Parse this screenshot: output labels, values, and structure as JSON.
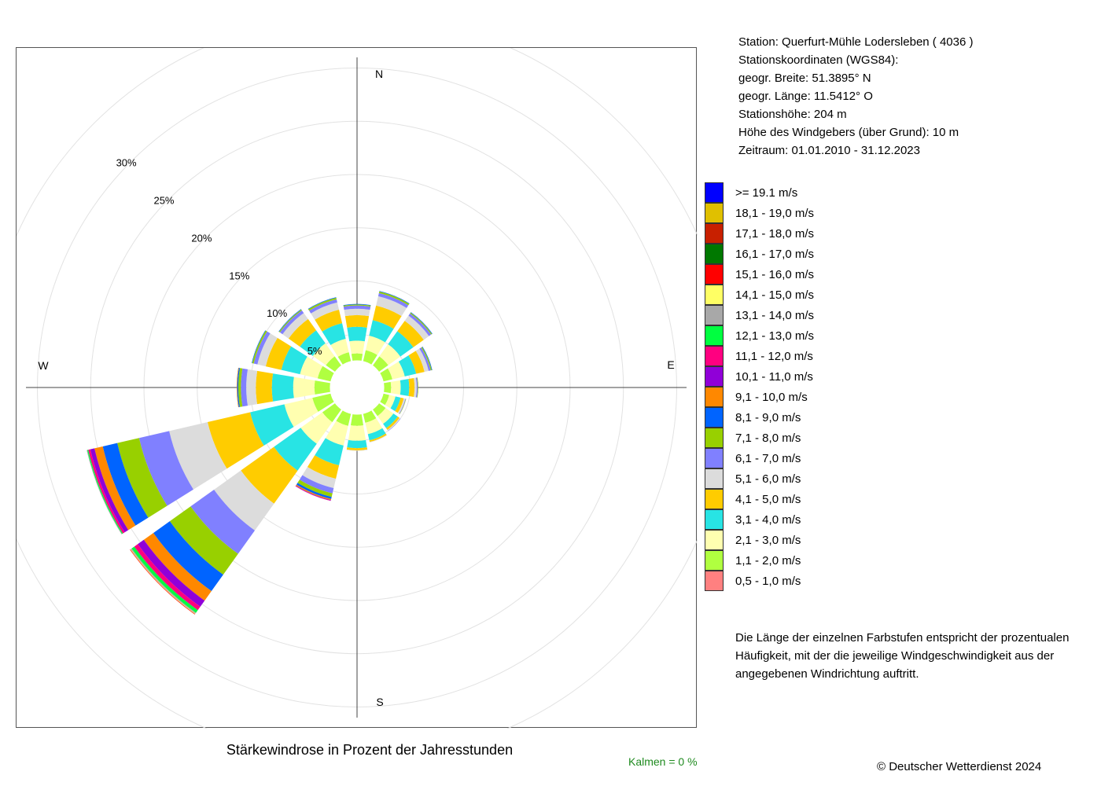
{
  "station": {
    "lines": [
      "Station:  Querfurt-Mühle Lodersleben  ( 4036 )",
      "Stationskoordinaten (WGS84):",
      "geogr. Breite: 51.3895° N",
      "geogr. Länge: 11.5412° O",
      "Stationshöhe: 204 m",
      "Höhe des Windgebers (über Grund): 10 m",
      "Zeitraum: 01.01.2010 - 31.12.2023"
    ]
  },
  "legend": [
    {
      "label": ">= 19.1 m/s",
      "color": "#0000ff"
    },
    {
      "label": "18,1 - 19,0 m/s",
      "color": "#e0c000"
    },
    {
      "label": "17,1 - 18,0 m/s",
      "color": "#c82000"
    },
    {
      "label": "16,1 - 17,0 m/s",
      "color": "#007800"
    },
    {
      "label": "15,1 - 16,0 m/s",
      "color": "#ff0000"
    },
    {
      "label": "14,1 - 15,0 m/s",
      "color": "#ffff64"
    },
    {
      "label": "13,1 - 14,0 m/s",
      "color": "#a8a8a8"
    },
    {
      "label": "12,1 - 13,0 m/s",
      "color": "#00ff40"
    },
    {
      "label": "11,1 - 12,0 m/s",
      "color": "#ff0080"
    },
    {
      "label": "10,1 - 11,0 m/s",
      "color": "#9000d8"
    },
    {
      "label": "9,1 - 10,0 m/s",
      "color": "#ff8800"
    },
    {
      "label": "8,1 - 9,0 m/s",
      "color": "#0064ff"
    },
    {
      "label": "7,1 - 8,0 m/s",
      "color": "#98d000"
    },
    {
      "label": "6,1 - 7,0 m/s",
      "color": "#8080ff"
    },
    {
      "label": "5,1 - 6,0 m/s",
      "color": "#dcdcdc"
    },
    {
      "label": "4,1 - 5,0 m/s",
      "color": "#ffcc00"
    },
    {
      "label": "3,1 - 4,0 m/s",
      "color": "#28e4e4"
    },
    {
      "label": "2,1 - 3,0 m/s",
      "color": "#ffffb0"
    },
    {
      "label": "1,1 - 2,0 m/s",
      "color": "#b0ff40"
    },
    {
      "label": "0,5 - 1,0 m/s",
      "color": "#ff8080"
    }
  ],
  "note": {
    "lines": [
      "Die Länge der einzelnen Farbstufen entspricht der prozentualen",
      "Häufigkeit, mit der die jeweilige Windgeschwindigkeit aus der",
      "angegebenen Windrichtung auftritt."
    ]
  },
  "title": "Stärkewindrose in Prozent der Jahresstunden",
  "copyright": "© Deutscher Wetterdienst  2024",
  "calm_label": "Kalmen  =  0 %",
  "chart_data": {
    "type": "polar-stacked-bar",
    "title": "Stärkewindrose in Prozent der Jahresstunden",
    "directions": [
      "N",
      "NNO",
      "NO",
      "ONO",
      "O",
      "OSO",
      "SO",
      "SSO",
      "S",
      "SSW",
      "SW",
      "WSW",
      "W",
      "WNW",
      "NW",
      "NNW"
    ],
    "direction_labels": {
      "N": "N",
      "E": "E",
      "S": "S",
      "W": "W"
    },
    "radial_ticks": [
      {
        "value": 5,
        "label": "5%"
      },
      {
        "value": 10,
        "label": "10%"
      },
      {
        "value": 15,
        "label": "15%"
      },
      {
        "value": 20,
        "label": "20%"
      },
      {
        "value": 25,
        "label": "25%"
      },
      {
        "value": 30,
        "label": "30%"
      }
    ],
    "rmax": 31,
    "calm_percent": 0,
    "bins_low_to_high": [
      "0,5 - 1,0 m/s",
      "1,1 - 2,0 m/s",
      "2,1 - 3,0 m/s",
      "3,1 - 4,0 m/s",
      "4,1 - 5,0 m/s",
      "5,1 - 6,0 m/s",
      "6,1 - 7,0 m/s",
      "7,1 - 8,0 m/s",
      "8,1 - 9,0 m/s",
      "9,1 - 10,0 m/s",
      "10,1 - 11,0 m/s",
      "11,1 - 12,0 m/s",
      "12,1 - 13,0 m/s",
      "13,1 - 14,0 m/s",
      "14,1 - 15,0 m/s",
      "15,1 - 16,0 m/s",
      "16,1 - 17,0 m/s",
      "17,1 - 18,0 m/s",
      "18,1 - 19,0 m/s",
      ">= 19.1 m/s"
    ],
    "values": {
      "N": [
        2.5,
        0.7,
        1.2,
        1.3,
        1.1,
        0.6,
        0.3,
        0.1,
        0.05,
        0,
        0,
        0,
        0,
        0,
        0,
        0,
        0,
        0,
        0,
        0
      ],
      "NNO": [
        2.5,
        1.1,
        1.4,
        1.5,
        1.4,
        0.9,
        0.3,
        0.15,
        0.05,
        0,
        0,
        0,
        0,
        0,
        0,
        0,
        0,
        0,
        0,
        0
      ],
      "NO": [
        2.5,
        1.1,
        1.4,
        1.5,
        1.2,
        0.6,
        0.25,
        0.1,
        0.05,
        0,
        0,
        0,
        0,
        0,
        0,
        0,
        0,
        0,
        0,
        0
      ],
      "ONO": [
        2.5,
        0.9,
        1.2,
        1.1,
        0.8,
        0.4,
        0.2,
        0.1,
        0.05,
        0,
        0,
        0,
        0,
        0,
        0,
        0,
        0,
        0,
        0,
        0
      ],
      "O": [
        2.5,
        0.7,
        0.9,
        0.8,
        0.5,
        0.2,
        0.1,
        0.05,
        0,
        0,
        0,
        0,
        0,
        0,
        0,
        0,
        0,
        0,
        0,
        0
      ],
      "OSO": [
        2.5,
        0.6,
        0.6,
        0.5,
        0.3,
        0.15,
        0.05,
        0.03,
        0,
        0,
        0,
        0,
        0,
        0,
        0,
        0,
        0,
        0,
        0,
        0
      ],
      "SO": [
        2.5,
        0.8,
        0.9,
        0.5,
        0.2,
        0.1,
        0.03,
        0,
        0,
        0,
        0,
        0,
        0,
        0,
        0,
        0,
        0,
        0,
        0,
        0
      ],
      "SSO": [
        2.5,
        0.9,
        1.1,
        0.6,
        0.15,
        0.05,
        0,
        0,
        0,
        0,
        0,
        0,
        0,
        0,
        0,
        0,
        0,
        0,
        0,
        0
      ],
      "S": [
        2.5,
        1.1,
        1.4,
        0.7,
        0.2,
        0.05,
        0,
        0,
        0,
        0,
        0,
        0,
        0,
        0,
        0,
        0,
        0,
        0,
        0,
        0
      ],
      "SSW": [
        2.5,
        1.2,
        1.9,
        1.9,
        1.3,
        0.9,
        0.5,
        0.35,
        0.2,
        0.1,
        0.05,
        0.03,
        0,
        0,
        0,
        0,
        0,
        0,
        0,
        0
      ],
      "SW": [
        2.5,
        1.5,
        2.5,
        3.1,
        3.8,
        3.1,
        2.7,
        2.4,
        1.9,
        1.1,
        0.7,
        0.4,
        0.3,
        0.1,
        0.05,
        0.05,
        0,
        0,
        0,
        0
      ],
      "WSW": [
        2.5,
        1.8,
        2.7,
        3.3,
        4.1,
        3.7,
        2.9,
        2.1,
        1.4,
        0.8,
        0.4,
        0.2,
        0.1,
        0.05,
        0,
        0,
        0,
        0,
        0,
        0
      ],
      "W": [
        2.5,
        1.5,
        2.0,
        2.0,
        1.5,
        0.9,
        0.5,
        0.25,
        0.1,
        0.05,
        0,
        0,
        0,
        0,
        0,
        0,
        0,
        0,
        0,
        0
      ],
      "WNW": [
        2.5,
        1.3,
        1.7,
        1.8,
        1.5,
        0.8,
        0.35,
        0.15,
        0.05,
        0,
        0,
        0,
        0,
        0,
        0,
        0,
        0,
        0,
        0,
        0
      ],
      "NW": [
        2.5,
        1.1,
        1.5,
        1.5,
        1.3,
        0.7,
        0.3,
        0.1,
        0.05,
        0,
        0,
        0,
        0,
        0,
        0,
        0,
        0,
        0,
        0,
        0
      ],
      "NNW": [
        2.5,
        0.9,
        1.3,
        1.5,
        1.3,
        0.7,
        0.3,
        0.15,
        0.05,
        0,
        0,
        0,
        0,
        0,
        0,
        0,
        0,
        0,
        0,
        0
      ]
    }
  }
}
